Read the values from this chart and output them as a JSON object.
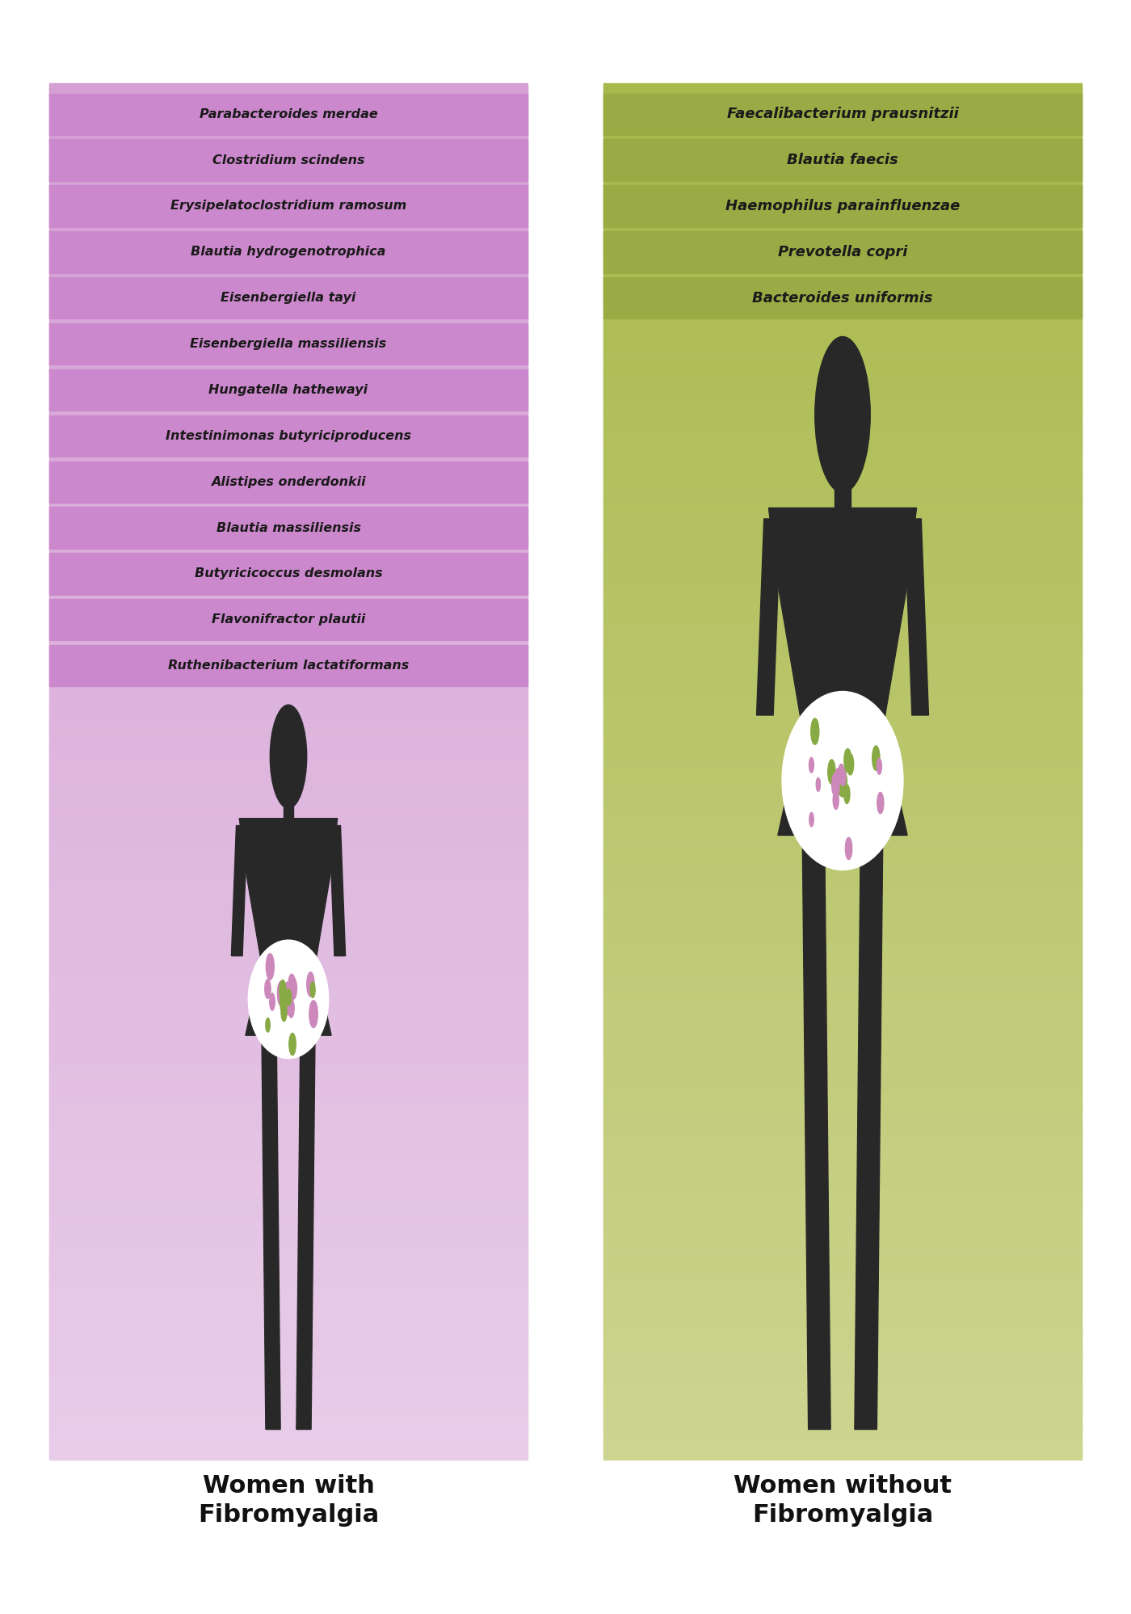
{
  "left_species": [
    "Parabacteroides merdae",
    "Clostridium scindens",
    "Erysipelatoclostridium ramosum",
    "Blautia hydrogenotrophica",
    "Eisenbergiella tayi",
    "Eisenbergiella massiliensis",
    "Hungatella hathewayi",
    "Intestinimonas butyriciproducens",
    "Alistipes onderdonkii",
    "Blautia massiliensis",
    "Butyricicoccus desmolans",
    "Flavonifractor plautii",
    "Ruthenibacterium lactatiformans"
  ],
  "right_species": [
    "Faecalibacterium prausnitzii",
    "Blautia faecis",
    "Haemophilus parainfluenzae",
    "Prevotella copri",
    "Bacteroides uniformis"
  ],
  "left_bg_top": "#d4a0d4",
  "left_bg_bottom": "#e8cce8",
  "right_bg_top": "#a8b84a",
  "right_bg_bottom": "#cdd490",
  "left_label_bg": "#cc88cc",
  "right_label_bg": "#9aaa44",
  "left_title": "Women with\nFibromyalgia",
  "right_title": "Women without\nFibromyalgia",
  "text_color": "#1a1a1a",
  "title_color": "#111111",
  "bg_color": "#ffffff",
  "purple_dot": "#cc88bb",
  "green_dot": "#88aa44"
}
